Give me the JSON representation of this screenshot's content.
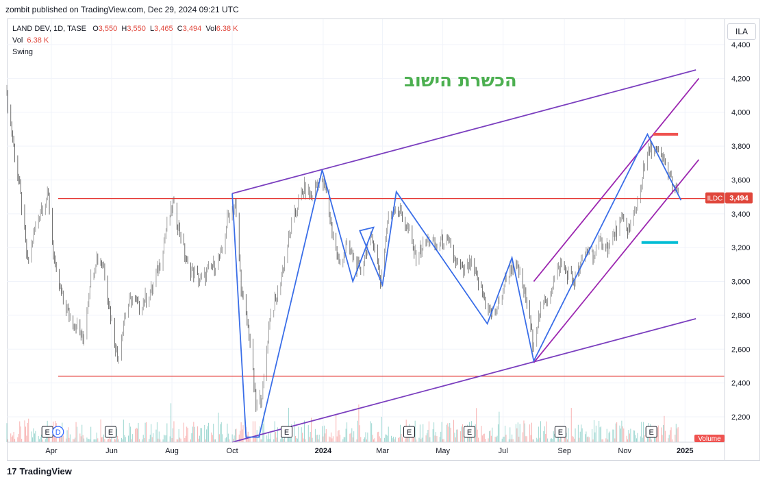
{
  "header": {
    "published_line": "zombit published on TradingView.com, Dec 29, 2024 09:21 UTC"
  },
  "legend": {
    "symbol_line": "LAND DEV, 1D, TASE",
    "o_label": "O",
    "o_value": "3,550",
    "h_label": "H",
    "h_value": "3,550",
    "l_label": "L",
    "l_value": "3,465",
    "c_label": "C",
    "c_value": "3,494",
    "vol_label": "Vol",
    "vol_value": "6.38 K",
    "vol_row_label": "Vol",
    "vol_row_value": "6.38 K",
    "indicator": "Swing"
  },
  "currency_button": "ILA",
  "annotation_text": "הכשרת הישוב",
  "footer": {
    "brand": "TradingView",
    "logo_glyph": "17"
  },
  "colors": {
    "price_up": "#8a8a8a",
    "price_dn": "#4a4a4a",
    "horizontal": "#e53935",
    "channel": "#7b3fbf",
    "inner_channel": "#9c27b0",
    "swing": "#3a6ee8",
    "marker_red": "#ef5350",
    "marker_cyan": "#00bcd4",
    "annotation": "#4caf50",
    "last_price_bg": "#e0463b"
  },
  "chart_data": {
    "type": "candlestick",
    "title": "LAND DEV, 1D, TASE",
    "ylim": [
      2050,
      4550
    ],
    "y_ticks": [
      "2,200",
      "2,400",
      "2,600",
      "2,800",
      "3,000",
      "3,200",
      "3,400",
      "3,600",
      "3,800",
      "4,000",
      "4,200",
      "4,400"
    ],
    "y_tick_values": [
      2200,
      2400,
      2600,
      2800,
      3000,
      3200,
      3400,
      3600,
      3800,
      4000,
      4200,
      4400
    ],
    "x_axis_labels": [
      "Apr",
      "Jun",
      "Aug",
      "Oct",
      "2024",
      "Mar",
      "May",
      "Jul",
      "Sep",
      "Nov",
      "2025"
    ],
    "x_axis_dates": [
      "2023-04-01",
      "2023-06-01",
      "2023-08-01",
      "2023-10-01",
      "2024-01-01",
      "2024-03-01",
      "2024-05-01",
      "2024-07-01",
      "2024-09-01",
      "2024-11-01",
      "2025-01-01"
    ],
    "x_range": [
      "2023-02-15",
      "2025-02-10"
    ],
    "last_price": {
      "symbol": "ILDC",
      "value": "3,494",
      "price": 3494
    },
    "volume_label": "Volume",
    "price_path": [
      [
        "2023-02-15",
        4100
      ],
      [
        "2023-02-22",
        3800
      ],
      [
        "2023-03-01",
        3500
      ],
      [
        "2023-03-08",
        3100
      ],
      [
        "2023-03-15",
        3300
      ],
      [
        "2023-03-22",
        3450
      ],
      [
        "2023-03-29",
        3500
      ],
      [
        "2023-04-05",
        3050
      ],
      [
        "2023-04-12",
        2900
      ],
      [
        "2023-04-19",
        2800
      ],
      [
        "2023-04-26",
        2750
      ],
      [
        "2023-05-03",
        2650
      ],
      [
        "2023-05-10",
        3000
      ],
      [
        "2023-05-17",
        3150
      ],
      [
        "2023-05-24",
        3100
      ],
      [
        "2023-05-31",
        2800
      ],
      [
        "2023-06-07",
        2550
      ],
      [
        "2023-06-14",
        2800
      ],
      [
        "2023-06-21",
        2900
      ],
      [
        "2023-06-28",
        2850
      ],
      [
        "2023-07-05",
        2900
      ],
      [
        "2023-07-12",
        2950
      ],
      [
        "2023-07-19",
        3100
      ],
      [
        "2023-07-26",
        3300
      ],
      [
        "2023-08-02",
        3450
      ],
      [
        "2023-08-09",
        3300
      ],
      [
        "2023-08-16",
        3100
      ],
      [
        "2023-08-23",
        3050
      ],
      [
        "2023-08-30",
        3000
      ],
      [
        "2023-09-06",
        3050
      ],
      [
        "2023-09-13",
        3100
      ],
      [
        "2023-09-20",
        3150
      ],
      [
        "2023-09-27",
        3400
      ],
      [
        "2023-10-04",
        3450
      ],
      [
        "2023-10-11",
        2900
      ],
      [
        "2023-10-18",
        2700
      ],
      [
        "2023-10-25",
        2250
      ],
      [
        "2023-11-01",
        2350
      ],
      [
        "2023-11-08",
        2800
      ],
      [
        "2023-11-15",
        2900
      ],
      [
        "2023-11-22",
        3100
      ],
      [
        "2023-11-29",
        3300
      ],
      [
        "2023-12-06",
        3450
      ],
      [
        "2023-12-13",
        3550
      ],
      [
        "2023-12-20",
        3500
      ],
      [
        "2023-12-27",
        3600
      ],
      [
        "2024-01-03",
        3550
      ],
      [
        "2024-01-10",
        3300
      ],
      [
        "2024-01-17",
        3100
      ],
      [
        "2024-01-24",
        3200
      ],
      [
        "2024-01-31",
        3150
      ],
      [
        "2024-02-07",
        3050
      ],
      [
        "2024-02-14",
        3200
      ],
      [
        "2024-02-21",
        3250
      ],
      [
        "2024-02-28",
        3000
      ],
      [
        "2024-03-06",
        3350
      ],
      [
        "2024-03-13",
        3450
      ],
      [
        "2024-03-20",
        3400
      ],
      [
        "2024-03-27",
        3300
      ],
      [
        "2024-04-03",
        3150
      ],
      [
        "2024-04-10",
        3200
      ],
      [
        "2024-04-17",
        3250
      ],
      [
        "2024-04-24",
        3200
      ],
      [
        "2024-05-01",
        3250
      ],
      [
        "2024-05-08",
        3200
      ],
      [
        "2024-05-15",
        3100
      ],
      [
        "2024-05-22",
        3050
      ],
      [
        "2024-05-29",
        3100
      ],
      [
        "2024-06-05",
        3000
      ],
      [
        "2024-06-12",
        2900
      ],
      [
        "2024-06-19",
        2800
      ],
      [
        "2024-06-26",
        2850
      ],
      [
        "2024-07-03",
        3000
      ],
      [
        "2024-07-10",
        3100
      ],
      [
        "2024-07-17",
        3050
      ],
      [
        "2024-07-24",
        2900
      ],
      [
        "2024-07-31",
        2650
      ],
      [
        "2024-08-07",
        2800
      ],
      [
        "2024-08-14",
        2900
      ],
      [
        "2024-08-21",
        3000
      ],
      [
        "2024-08-28",
        3100
      ],
      [
        "2024-09-04",
        3050
      ],
      [
        "2024-09-11",
        3000
      ],
      [
        "2024-09-18",
        3100
      ],
      [
        "2024-09-25",
        3200
      ],
      [
        "2024-10-02",
        3150
      ],
      [
        "2024-10-09",
        3250
      ],
      [
        "2024-10-16",
        3200
      ],
      [
        "2024-10-23",
        3300
      ],
      [
        "2024-10-30",
        3350
      ],
      [
        "2024-11-06",
        3300
      ],
      [
        "2024-11-13",
        3450
      ],
      [
        "2024-11-20",
        3650
      ],
      [
        "2024-11-27",
        3800
      ],
      [
        "2024-12-04",
        3750
      ],
      [
        "2024-12-11",
        3700
      ],
      [
        "2024-12-18",
        3600
      ],
      [
        "2024-12-25",
        3494
      ]
    ],
    "horizontal_levels": [
      3490,
      2440
    ],
    "trend_lines": [
      {
        "name": "outer-upper",
        "from": [
          "2023-10-01",
          3520
        ],
        "to": [
          "2025-01-12",
          4250
        ]
      },
      {
        "name": "outer-lower",
        "from": [
          "2023-10-01",
          2050
        ],
        "to": [
          "2025-01-12",
          2780
        ]
      },
      {
        "name": "inner-upper",
        "from": [
          "2024-08-01",
          3000
        ],
        "to": [
          "2025-01-15",
          4200
        ]
      },
      {
        "name": "inner-lower",
        "from": [
          "2024-08-01",
          2520
        ],
        "to": [
          "2025-01-15",
          3720
        ]
      }
    ],
    "swing_path": [
      [
        "2023-10-01",
        3520
      ],
      [
        "2023-10-15",
        2080
      ],
      [
        "2023-10-28",
        2080
      ],
      [
        "2023-12-31",
        3660
      ],
      [
        "2024-01-31",
        3000
      ],
      [
        "2024-02-21",
        3320
      ],
      [
        "2024-02-07",
        3300
      ],
      [
        "2024-03-01",
        2980
      ],
      [
        "2024-03-15",
        3530
      ],
      [
        "2024-06-15",
        2750
      ],
      [
        "2024-07-10",
        3140
      ],
      [
        "2024-08-01",
        2530
      ],
      [
        "2024-11-24",
        3870
      ],
      [
        "2024-12-28",
        3480
      ]
    ],
    "markers": [
      {
        "name": "red-resistance-marker",
        "from": [
          "2024-11-30",
          3870
        ],
        "to": [
          "2024-12-25",
          3870
        ]
      },
      {
        "name": "cyan-support-marker",
        "from": [
          "2024-11-18",
          3230
        ],
        "to": [
          "2024-12-25",
          3230
        ]
      }
    ],
    "event_markers": [
      "E",
      "E",
      "E",
      "E",
      "E",
      "E",
      "E"
    ],
    "event_dates": [
      "2023-03-28",
      "2023-05-31",
      "2023-11-25",
      "2024-03-28",
      "2024-05-28",
      "2024-08-28",
      "2024-11-28"
    ],
    "dividend_marker": {
      "label": "D",
      "date": "2023-04-05"
    }
  }
}
